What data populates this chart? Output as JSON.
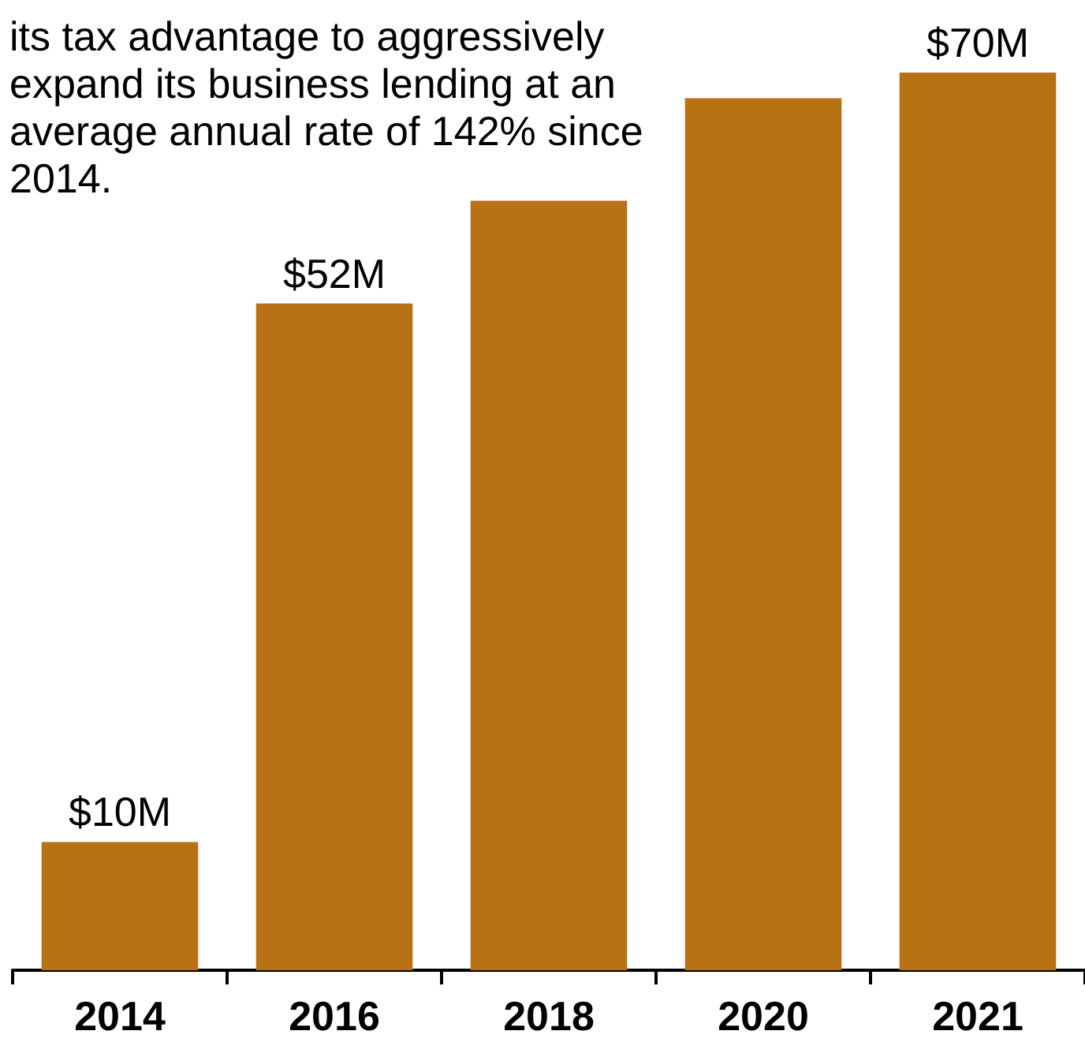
{
  "chart_data": {
    "type": "bar",
    "categories": [
      "2014",
      "2016",
      "2018",
      "2020",
      "2021"
    ],
    "values": [
      10,
      52,
      60,
      68,
      70
    ],
    "value_labels": [
      "$10M",
      "$52M",
      null,
      null,
      "$70M"
    ],
    "color": "#b87114",
    "annotations": [
      "its tax advantage to aggressively expand its business lending at an average annual rate of 142% since 2014."
    ]
  }
}
